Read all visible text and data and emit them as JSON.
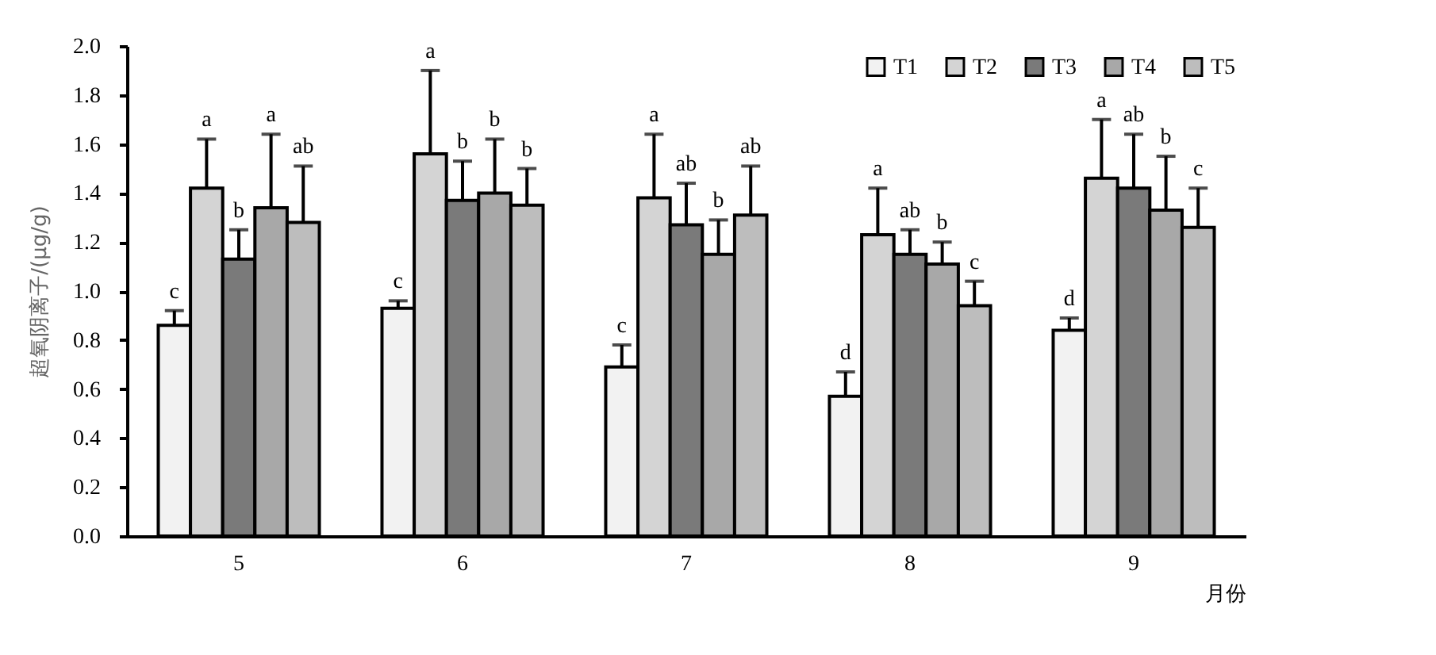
{
  "chart_data": {
    "type": "bar",
    "ylabel": "超氧阴离子/(μg/g)",
    "xlabel": "月份",
    "categories": [
      "5",
      "6",
      "7",
      "8",
      "9"
    ],
    "ylim": [
      0,
      2.0
    ],
    "yticks": [
      {
        "value": 0,
        "label": "0.0"
      },
      {
        "value": 0.2,
        "label": "0.2"
      },
      {
        "value": 0.4,
        "label": "0.4"
      },
      {
        "value": 0.6,
        "label": "0.6"
      },
      {
        "value": 0.8,
        "label": "0.8"
      },
      {
        "value": 1.0,
        "label": "1.0"
      },
      {
        "value": 1.2,
        "label": "1.2"
      },
      {
        "value": 1.4,
        "label": "1.4"
      },
      {
        "value": 1.6,
        "label": "1.6"
      },
      {
        "value": 1.8,
        "label": "1.8"
      },
      {
        "value": 2.0,
        "label": "2.0"
      }
    ],
    "legend": "top right",
    "grid": false,
    "series": [
      {
        "name": "T1",
        "color": "#f2f2f2",
        "values": [
          0.86,
          0.93,
          0.69,
          0.57,
          0.84
        ],
        "errors": [
          [
            0.86,
            0.92
          ],
          [
            0.93,
            0.96
          ],
          [
            0.69,
            0.78
          ],
          [
            0.57,
            0.67
          ],
          [
            0.84,
            0.89
          ]
        ]
      },
      {
        "name": "T2",
        "color": "#d4d4d4",
        "values": [
          1.42,
          1.56,
          1.38,
          1.23,
          1.46
        ],
        "errors": [
          [
            1.42,
            1.62
          ],
          [
            1.56,
            1.9
          ],
          [
            1.38,
            1.64
          ],
          [
            1.23,
            1.42
          ],
          [
            1.46,
            1.7
          ]
        ]
      },
      {
        "name": "T3",
        "color": "#7a7a7a",
        "values": [
          1.13,
          1.37,
          1.27,
          1.15,
          1.42
        ],
        "errors": [
          [
            1.13,
            1.25
          ],
          [
            1.37,
            1.53
          ],
          [
            1.27,
            1.44
          ],
          [
            1.15,
            1.25
          ],
          [
            1.42,
            1.64
          ]
        ]
      },
      {
        "name": "T4",
        "color": "#a8a8a8",
        "values": [
          1.34,
          1.4,
          1.15,
          1.11,
          1.33
        ],
        "errors": [
          [
            1.34,
            1.64
          ],
          [
            1.4,
            1.62
          ],
          [
            1.15,
            1.29
          ],
          [
            1.11,
            1.2
          ],
          [
            1.33,
            1.55
          ]
        ]
      },
      {
        "name": "T5",
        "color": "#bdbdbd",
        "values": [
          1.28,
          1.35,
          1.31,
          0.94,
          1.26
        ],
        "errors": [
          [
            1.28,
            1.51
          ],
          [
            1.35,
            1.5
          ],
          [
            1.31,
            1.51
          ],
          [
            0.94,
            1.04
          ],
          [
            1.26,
            1.42
          ]
        ]
      }
    ],
    "annotations": [
      "c",
      "a",
      "b",
      "a",
      "ab",
      "c",
      "a",
      "b",
      "b",
      "b",
      "c",
      "a",
      "ab",
      "b",
      "ab",
      "d",
      "a",
      "ab",
      "b",
      "c",
      "d",
      "a",
      "ab",
      "b",
      "c"
    ]
  }
}
